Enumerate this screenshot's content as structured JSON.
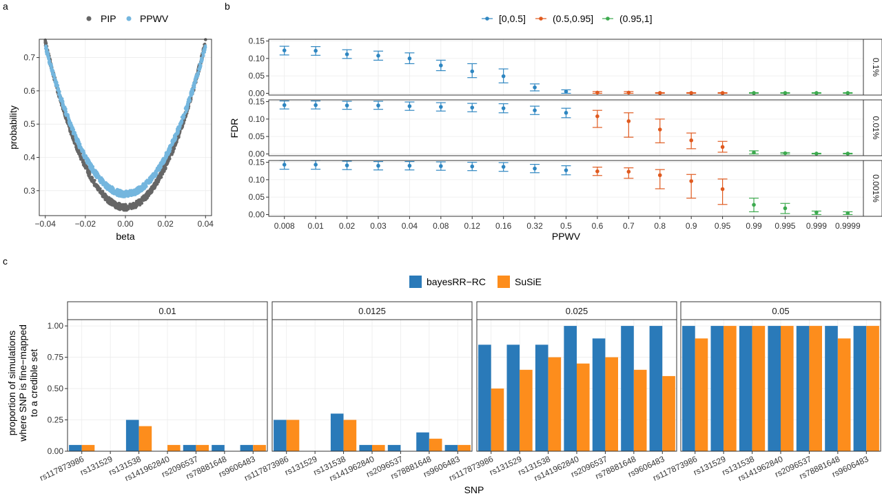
{
  "panel_labels": {
    "a": "a",
    "b": "b",
    "c": "c"
  },
  "colors": {
    "pip": "#666666",
    "ppwv": "#74b6de",
    "bin1": "#2e86c1",
    "bin2": "#e05a1f",
    "bin3": "#3daa4f",
    "bayes": "#2a7ab9",
    "susie": "#fd8d1c"
  },
  "chart_data": [
    {
      "id": "a",
      "type": "scatter",
      "title": "",
      "xlabel": "beta",
      "ylabel": "probability",
      "xlim": [
        -0.043,
        0.043
      ],
      "ylim": [
        0.225,
        0.755
      ],
      "x_ticks": [
        -0.04,
        -0.02,
        0.0,
        0.02,
        0.04
      ],
      "x_tick_labels": [
        "−0.04",
        "−0.02",
        "0.00",
        "0.02",
        "0.04"
      ],
      "y_ticks": [
        0.3,
        0.4,
        0.5,
        0.6,
        0.7
      ],
      "y_tick_labels": [
        "0.3",
        "0.4",
        "0.5",
        "0.6",
        "0.7"
      ],
      "legend": [
        "PIP",
        "PPWV"
      ],
      "series": [
        {
          "name": "PIP",
          "curve": "quadratic",
          "x_range": [
            -0.04,
            0.04
          ],
          "vertex": [
            0.0,
            0.25
          ],
          "end_value": 0.745
        },
        {
          "name": "PPWV",
          "curve": "quadratic",
          "x_range": [
            -0.04,
            0.04
          ],
          "vertex": [
            0.0,
            0.29
          ],
          "end_value": 0.735
        }
      ],
      "grid": true
    },
    {
      "id": "b",
      "type": "scatter",
      "subtype": "errorbar",
      "xlabel": "PPWV",
      "ylabel": "FDR",
      "categories": [
        "0.008",
        "0.01",
        "0.02",
        "0.03",
        "0.04",
        "0.08",
        "0.12",
        "0.16",
        "0.32",
        "0.5",
        "0.6",
        "0.7",
        "0.8",
        "0.9",
        "0.95",
        "0.99",
        "0.995",
        "0.999",
        "0.9999"
      ],
      "color_groups": [
        "[0,0.5]",
        "[0,0.5]",
        "[0,0.5]",
        "[0,0.5]",
        "[0,0.5]",
        "[0,0.5]",
        "[0,0.5]",
        "[0,0.5]",
        "[0,0.5]",
        "[0,0.5]",
        "(0.5,0.95]",
        "(0.5,0.95]",
        "(0.5,0.95]",
        "(0.5,0.95]",
        "(0.5,0.95]",
        "(0.95,1]",
        "(0.95,1]",
        "(0.95,1]",
        "(0.95,1]"
      ],
      "legend": [
        "[0,0.5]",
        "(0.5,0.95]",
        "(0.95,1]"
      ],
      "ylim": [
        -0.005,
        0.155
      ],
      "y_ticks": [
        0.0,
        0.05,
        0.1,
        0.15
      ],
      "y_tick_labels": [
        "0.00",
        "0.05",
        "0.10",
        "0.15"
      ],
      "facets": [
        {
          "label": "0.1%",
          "values": [
            0.123,
            0.122,
            0.112,
            0.108,
            0.1,
            0.08,
            0.063,
            0.049,
            0.017,
            0.005,
            0.002,
            0.002,
            0.001,
            0.001,
            0.001,
            0.001,
            0.001,
            0.001,
            0.001
          ],
          "lower": [
            0.11,
            0.109,
            0.1,
            0.095,
            0.085,
            0.065,
            0.045,
            0.03,
            0.007,
            0.0,
            0.0,
            0.0,
            0.0,
            0.0,
            0.0,
            0.0,
            0.0,
            0.0,
            0.0
          ],
          "upper": [
            0.135,
            0.134,
            0.125,
            0.121,
            0.116,
            0.095,
            0.085,
            0.07,
            0.027,
            0.01,
            0.005,
            0.005,
            0.002,
            0.002,
            0.002,
            0.002,
            0.002,
            0.002,
            0.002
          ]
        },
        {
          "label": "0.01%",
          "values": [
            0.14,
            0.14,
            0.139,
            0.139,
            0.137,
            0.135,
            0.133,
            0.131,
            0.125,
            0.118,
            0.108,
            0.094,
            0.07,
            0.039,
            0.02,
            0.004,
            0.002,
            0.001,
            0.001
          ],
          "lower": [
            0.129,
            0.129,
            0.128,
            0.128,
            0.125,
            0.123,
            0.121,
            0.118,
            0.113,
            0.104,
            0.076,
            0.048,
            0.032,
            0.015,
            0.005,
            0.0,
            0.0,
            0.0,
            0.0
          ],
          "upper": [
            0.152,
            0.152,
            0.151,
            0.151,
            0.149,
            0.147,
            0.145,
            0.144,
            0.137,
            0.131,
            0.125,
            0.118,
            0.1,
            0.06,
            0.036,
            0.009,
            0.004,
            0.002,
            0.002
          ]
        },
        {
          "label": "0.001%",
          "values": [
            0.143,
            0.143,
            0.141,
            0.14,
            0.14,
            0.139,
            0.138,
            0.137,
            0.132,
            0.127,
            0.124,
            0.123,
            0.113,
            0.096,
            0.073,
            0.028,
            0.018,
            0.006,
            0.004
          ],
          "lower": [
            0.13,
            0.13,
            0.129,
            0.128,
            0.128,
            0.127,
            0.126,
            0.124,
            0.12,
            0.114,
            0.112,
            0.104,
            0.074,
            0.047,
            0.029,
            0.008,
            0.003,
            0.0,
            0.0
          ],
          "upper": [
            0.155,
            0.155,
            0.153,
            0.152,
            0.152,
            0.151,
            0.15,
            0.149,
            0.144,
            0.14,
            0.136,
            0.134,
            0.129,
            0.115,
            0.102,
            0.047,
            0.032,
            0.01,
            0.008
          ]
        }
      ]
    },
    {
      "id": "c",
      "type": "bar",
      "xlabel": "SNP",
      "ylabel": [
        "proportion of simulations",
        "where SNP is fine−mapped",
        "to a credible set"
      ],
      "ylim": [
        0,
        1.05
      ],
      "y_ticks": [
        0.0,
        0.25,
        0.5,
        0.75,
        1.0
      ],
      "y_tick_labels": [
        "0.00",
        "0.25",
        "0.50",
        "0.75",
        "1.00"
      ],
      "categories": [
        "rs117873986",
        "rs131529",
        "rs131538",
        "rs141962840",
        "rs2096537",
        "rs78881648",
        "rs9606483"
      ],
      "legend": [
        "bayesRR−RC",
        "SuSiE"
      ],
      "facets": [
        {
          "label": "0.01",
          "series": [
            {
              "name": "bayesRR−RC",
              "values": [
                0.05,
                0.0,
                0.25,
                0.0,
                0.05,
                0.05,
                0.05
              ]
            },
            {
              "name": "SuSiE",
              "values": [
                0.05,
                0.0,
                0.2,
                0.05,
                0.05,
                0.0,
                0.05
              ]
            }
          ]
        },
        {
          "label": "0.0125",
          "series": [
            {
              "name": "bayesRR−RC",
              "values": [
                0.25,
                0.0,
                0.3,
                0.05,
                0.05,
                0.15,
                0.05
              ]
            },
            {
              "name": "SuSiE",
              "values": [
                0.25,
                0.0,
                0.25,
                0.05,
                0.0,
                0.1,
                0.05
              ]
            }
          ]
        },
        {
          "label": "0.025",
          "series": [
            {
              "name": "bayesRR−RC",
              "values": [
                0.85,
                0.85,
                0.85,
                1.0,
                0.9,
                1.0,
                1.0
              ]
            },
            {
              "name": "SuSiE",
              "values": [
                0.5,
                0.65,
                0.75,
                0.7,
                0.75,
                0.65,
                0.6
              ]
            }
          ]
        },
        {
          "label": "0.05",
          "series": [
            {
              "name": "bayesRR−RC",
              "values": [
                1.0,
                1.0,
                1.0,
                1.0,
                1.0,
                1.0,
                1.0
              ]
            },
            {
              "name": "SuSiE",
              "values": [
                0.9,
                1.0,
                1.0,
                1.0,
                1.0,
                0.9,
                1.0
              ]
            }
          ]
        }
      ]
    }
  ]
}
